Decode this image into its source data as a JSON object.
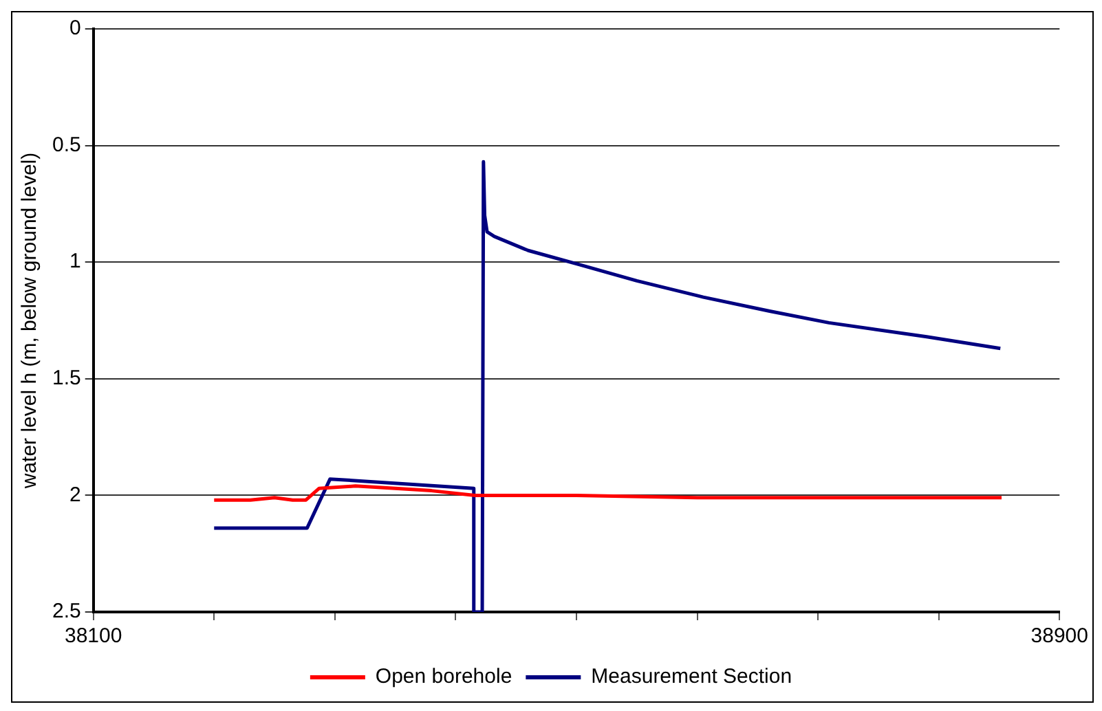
{
  "chart_data": {
    "type": "line",
    "ylabel": "water level h (m, below ground level)",
    "xlim": [
      38100,
      38900
    ],
    "xticks": [
      38100,
      {
        "value": 38200,
        "label": null
      },
      {
        "value": 38300,
        "label": null
      },
      {
        "value": 38400,
        "label": null
      },
      {
        "value": 38500,
        "label": null
      },
      {
        "value": 38600,
        "label": null
      },
      {
        "value": 38700,
        "label": null
      },
      {
        "value": 38800,
        "label": null
      },
      38900
    ],
    "ylim": [
      2.5,
      0
    ],
    "yticks": [
      0,
      0.5,
      1,
      1.5,
      2,
      2.5
    ],
    "grid": "y",
    "legend": "bottom",
    "marker": "none",
    "line_style": "solid",
    "series": [
      {
        "name": "Open borehole",
        "color": "#ff0000",
        "x": [
          38200,
          38230,
          38250,
          38265,
          38276,
          38287,
          38317,
          38350,
          38380,
          38416,
          38500,
          38600,
          38700,
          38800,
          38852
        ],
        "values": [
          2.02,
          2.02,
          2.01,
          2.02,
          2.02,
          1.97,
          1.96,
          1.97,
          1.98,
          2.0,
          2.0,
          2.01,
          2.01,
          2.01,
          2.01
        ]
      },
      {
        "name": "Measurement Section",
        "color": "#000080",
        "x": [
          38200,
          38277,
          38296,
          38415,
          38415,
          38421,
          38422,
          38423,
          38424,
          38426,
          38432,
          38460,
          38502,
          38550,
          38605,
          38660,
          38709,
          38790,
          38851
        ],
        "values": [
          2.14,
          2.14,
          1.93,
          1.97,
          2.5,
          2.5,
          2.5,
          0.57,
          0.8,
          0.87,
          0.89,
          0.95,
          1.01,
          1.08,
          1.15,
          1.21,
          1.26,
          1.32,
          1.37
        ]
      }
    ]
  }
}
